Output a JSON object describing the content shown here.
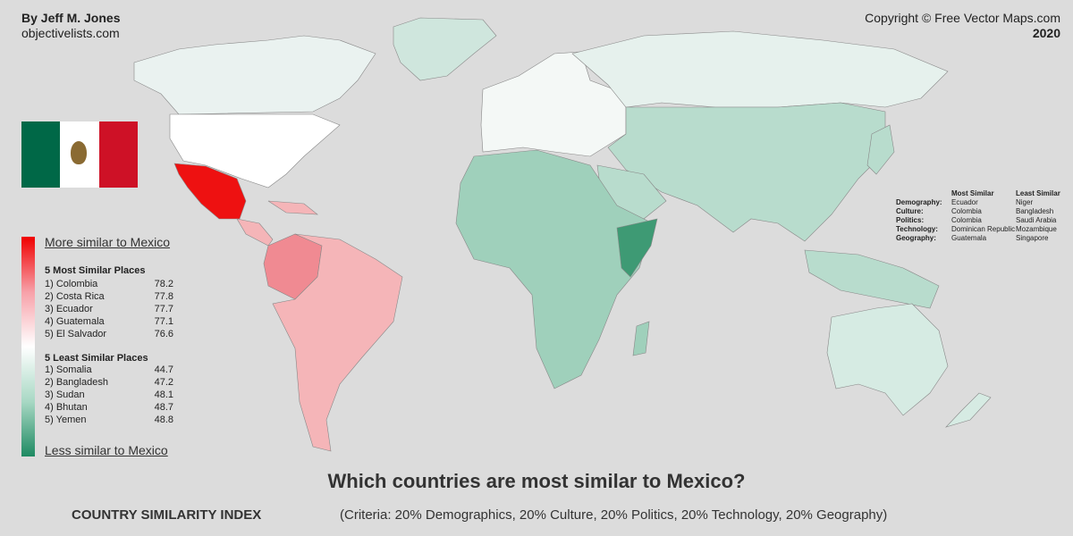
{
  "header": {
    "author": "By Jeff M. Jones",
    "site": "objectivelists.com",
    "copyright": "Copyright © Free Vector Maps.com",
    "year": "2020"
  },
  "legend": {
    "more_label": "More similar to Mexico",
    "less_label": "Less similar to Mexico",
    "most_title": "5 Most Similar Places",
    "most": [
      {
        "rank": "1) Colombia",
        "score": "78.2"
      },
      {
        "rank": "2) Costa Rica",
        "score": "77.8"
      },
      {
        "rank": "3) Ecuador",
        "score": "77.7"
      },
      {
        "rank": "4) Guatemala",
        "score": "77.1"
      },
      {
        "rank": "5) El Salvador",
        "score": "76.6"
      }
    ],
    "least_title": "5 Least Similar Places",
    "least": [
      {
        "rank": "1) Somalia",
        "score": "44.7"
      },
      {
        "rank": "2) Bangladesh",
        "score": "47.2"
      },
      {
        "rank": "3) Sudan",
        "score": "48.1"
      },
      {
        "rank": "4) Bhutan",
        "score": "48.7"
      },
      {
        "rank": "5) Yemen",
        "score": "48.8"
      }
    ],
    "gradient_colors": [
      "#f00000",
      "#f7a0a8",
      "#ffffff",
      "#a8d8c4",
      "#1e8a62"
    ]
  },
  "categories": {
    "headers": [
      "",
      "Most Similar",
      "Least Similar"
    ],
    "rows": [
      [
        "Demography:",
        "Ecuador",
        "Niger"
      ],
      [
        "Culture:",
        "Colombia",
        "Bangladesh"
      ],
      [
        "Politics:",
        "Colombia",
        "Saudi Arabia"
      ],
      [
        "Technology:",
        "Dominican Republic",
        "Mozambique"
      ],
      [
        "Geography:",
        "Guatemala",
        "Singapore"
      ]
    ]
  },
  "flag": {
    "colors": [
      "#006847",
      "#ffffff",
      "#ce1126"
    ]
  },
  "footer": {
    "title": "Which countries are most similar to Mexico?",
    "index_label": "COUNTRY SIMILARITY INDEX",
    "criteria": "(Criteria: 20% Demographics, 20% Culture, 20% Politics, 20% Technology, 20% Geography)"
  },
  "map_colors": {
    "mexico": "#ee1111",
    "latam": "#f5b5b8",
    "latam_high": "#f08a92",
    "north_america": "#ffffff",
    "canada": "#eaf2f0",
    "europe": "#f4f8f6",
    "greenland": "#cfe6dd",
    "russia": "#e6f1ed",
    "asia": "#b8dccd",
    "africa": "#9fd0bb",
    "horn": "#3e9a74",
    "oceania": "#d6ebe3"
  }
}
